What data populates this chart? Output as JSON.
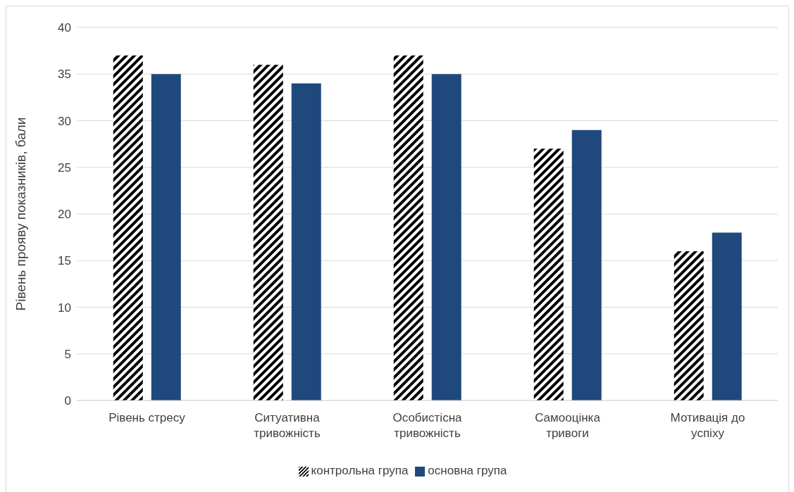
{
  "chart_data": {
    "type": "bar",
    "ylabel": "Рівень прояву показників, бали",
    "categories": [
      "Рівень стресу",
      "Ситуативна тривожність",
      "Особистісна тривожність",
      "Самооцінка тривоги",
      "Мотивація до успіху"
    ],
    "series": [
      {
        "name": "контрольна група",
        "color": "#000000",
        "values": [
          37,
          36,
          37,
          27,
          16
        ]
      },
      {
        "name": "основна група",
        "color": "#1f497d",
        "values": [
          35,
          34,
          35,
          29,
          18
        ]
      }
    ],
    "ylim": [
      0,
      40
    ],
    "yticks": [
      0,
      5,
      10,
      15,
      20,
      25,
      30,
      35,
      40
    ],
    "grid": "y",
    "legend": "bottom"
  }
}
